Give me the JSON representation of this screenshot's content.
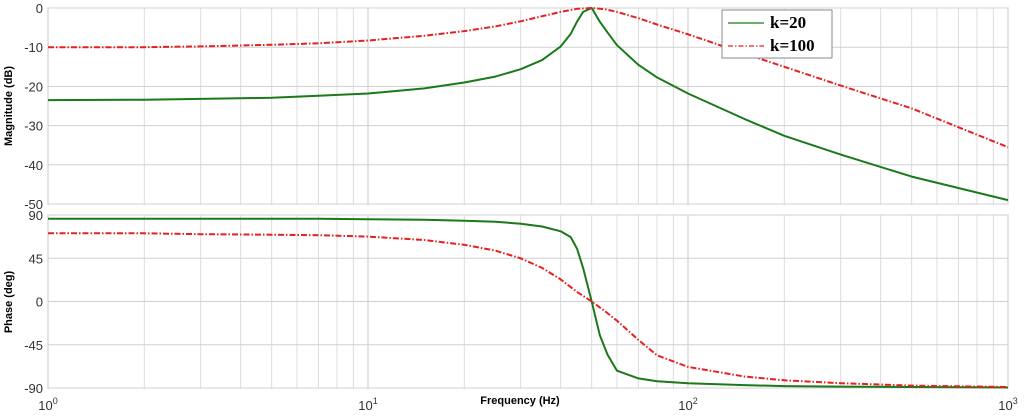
{
  "chart_data": [
    {
      "type": "line",
      "panel": "magnitude",
      "ylabel": "Magnitude (dB)",
      "xscale": "log",
      "xlim": [
        1,
        1000
      ],
      "ylim": [
        -50,
        0
      ],
      "yticks": [
        0,
        -10,
        -20,
        -30,
        -40,
        -50
      ],
      "grid": true,
      "legend": {
        "placement": "top-right",
        "entries": [
          "k=20",
          "k=100"
        ]
      },
      "series": [
        {
          "name": "k=20",
          "color": "#1a7a1a",
          "style": "solid",
          "x": [
            1,
            2,
            3,
            5,
            7,
            10,
            15,
            20,
            25,
            30,
            35,
            40,
            43,
            45,
            47,
            50,
            53,
            56,
            60,
            70,
            80,
            100,
            150,
            200,
            300,
            500,
            1000
          ],
          "y": [
            -23.5,
            -23.4,
            -23.2,
            -22.9,
            -22.4,
            -21.8,
            -20.5,
            -19.0,
            -17.5,
            -15.6,
            -13.3,
            -9.8,
            -6.6,
            -3.5,
            -1.0,
            0,
            -3.5,
            -6.2,
            -9.5,
            -14.5,
            -17.7,
            -21.8,
            -28.3,
            -32.6,
            -37.4,
            -43.0,
            -49.0
          ]
        },
        {
          "name": "k=100",
          "color": "#e62020",
          "style": "dashdot",
          "x": [
            1,
            2,
            3,
            5,
            7,
            10,
            15,
            20,
            25,
            30,
            35,
            40,
            45,
            50,
            55,
            60,
            70,
            80,
            100,
            150,
            200,
            300,
            500,
            1000
          ],
          "y": [
            -10.0,
            -10.0,
            -9.8,
            -9.4,
            -9.0,
            -8.3,
            -7.1,
            -5.9,
            -4.7,
            -3.4,
            -2.1,
            -1.0,
            -0.2,
            0,
            -0.3,
            -1.0,
            -2.6,
            -4.2,
            -6.7,
            -11.6,
            -15.0,
            -19.8,
            -25.6,
            -35.5
          ]
        }
      ]
    },
    {
      "type": "line",
      "panel": "phase",
      "xlabel": "Frequency (Hz)",
      "ylabel": "Phase (deg)",
      "xscale": "log",
      "xlim": [
        1,
        1000
      ],
      "ylim": [
        -90,
        90
      ],
      "yticks": [
        90,
        45,
        0,
        -45,
        -90
      ],
      "xticks": [
        {
          "value": 1,
          "base": "10",
          "exp": "0"
        },
        {
          "value": 10,
          "base": "10",
          "exp": "1"
        },
        {
          "value": 100,
          "base": "10",
          "exp": "2"
        },
        {
          "value": 1000,
          "base": "10",
          "exp": "3"
        }
      ],
      "grid": true,
      "series": [
        {
          "name": "k=20",
          "color": "#1a7a1a",
          "style": "solid",
          "x": [
            1,
            2,
            3,
            5,
            7,
            10,
            15,
            20,
            25,
            30,
            35,
            40,
            43,
            45,
            47,
            50,
            53,
            56,
            60,
            70,
            80,
            100,
            150,
            200,
            300,
            500,
            1000
          ],
          "y": [
            86,
            86,
            86,
            86,
            86,
            85.5,
            85,
            84,
            83,
            81,
            78,
            73,
            67,
            55,
            35,
            0,
            -35,
            -55,
            -72,
            -80,
            -83,
            -85,
            -87,
            -88,
            -88.5,
            -89,
            -89.5
          ]
        },
        {
          "name": "k=100",
          "color": "#e62020",
          "style": "dashdot",
          "x": [
            1,
            2,
            3,
            5,
            7,
            10,
            15,
            20,
            25,
            30,
            35,
            40,
            45,
            50,
            55,
            60,
            70,
            80,
            100,
            150,
            200,
            300,
            500,
            1000
          ],
          "y": [
            71,
            71,
            70,
            69.5,
            69,
            67.5,
            64,
            59,
            53,
            45,
            35,
            23,
            10,
            0,
            -10,
            -20,
            -40,
            -56,
            -68,
            -78,
            -82,
            -85,
            -87.5,
            -89
          ]
        }
      ]
    }
  ]
}
